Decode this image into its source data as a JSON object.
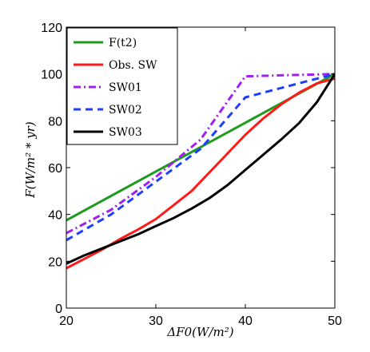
{
  "chart_data": {
    "type": "line",
    "xlabel": "ΔF0(W/m²)",
    "ylabel": "F(W/m² * yr)",
    "xlim": [
      20,
      50
    ],
    "ylim": [
      0,
      120
    ],
    "xticks": [
      20,
      30,
      40,
      50
    ],
    "yticks": [
      0,
      20,
      40,
      60,
      80,
      100,
      120
    ],
    "grid": false,
    "legend_position": "top-left",
    "series": [
      {
        "name": "F(t2)",
        "color": "#1f9a1f",
        "dash": "solid",
        "x": [
          20,
          50
        ],
        "y": [
          37.5,
          100
        ]
      },
      {
        "name": "Obs. SW",
        "color": "#ff1a1a",
        "dash": "solid",
        "x": [
          20,
          22,
          24,
          26,
          28,
          30,
          32,
          34,
          36,
          38,
          40,
          42,
          44,
          46,
          48,
          50
        ],
        "y": [
          17,
          21,
          25,
          29.5,
          33.5,
          38,
          44,
          50,
          58,
          66,
          74,
          81,
          87,
          92,
          96,
          98
        ]
      },
      {
        "name": "SW01",
        "color": "#a020f0",
        "dash": "dashdot",
        "x": [
          20,
          25,
          30,
          35,
          40,
          45,
          50
        ],
        "y": [
          32,
          42,
          56,
          72,
          99,
          99.5,
          100
        ]
      },
      {
        "name": "SW02",
        "color": "#1f3fff",
        "dash": "dash",
        "x": [
          20,
          25,
          30,
          35,
          40,
          45,
          50
        ],
        "y": [
          29,
          40,
          54,
          68,
          90,
          95,
          100
        ]
      },
      {
        "name": "SW03",
        "color": "#000000",
        "dash": "solid",
        "x": [
          20,
          22,
          24,
          26,
          28,
          30,
          32,
          34,
          36,
          38,
          40,
          42,
          44,
          46,
          48,
          50
        ],
        "y": [
          19,
          22.5,
          25.5,
          28.5,
          31.5,
          35,
          38.5,
          42.5,
          47,
          52.5,
          59,
          65.5,
          72,
          79,
          88,
          100
        ]
      }
    ]
  }
}
